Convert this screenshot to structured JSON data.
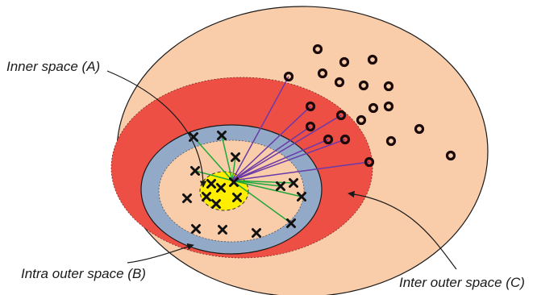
{
  "labels": {
    "inner": "Inner space (A)",
    "intra": "Intra outer space (B)",
    "inter": "Inter outer space (C)"
  },
  "colors": {
    "outer_ellipse": "#f9ccaa",
    "red_region": "#ee4f45",
    "blue_ring": "#93a9c8",
    "inner_peach": "#f9ccaa",
    "yellow_core": "#ffee00",
    "green_lines": "#1fa83a",
    "purple_lines": "#6a3aa8"
  },
  "icons": {
    "x_marker": "x-marker-icon",
    "o_marker": "circle-marker-icon"
  }
}
